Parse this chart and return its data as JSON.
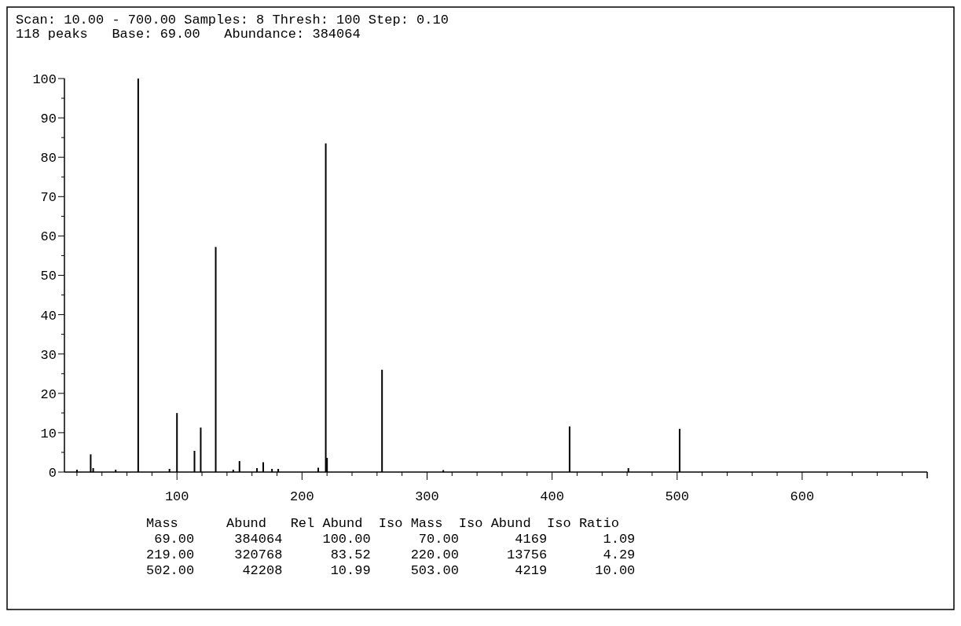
{
  "chart_data": {
    "type": "bar",
    "title": "Scan: 10.00 - 700.00 Samples: 8 Thresh: 100 Step: 0.10",
    "subtitle": "118 peaks   Base: 69.00   Abundance: 384064",
    "x": [
      20,
      31,
      33,
      51,
      69,
      94,
      100,
      114,
      119,
      131,
      145,
      150,
      164,
      169,
      176,
      181,
      213,
      219,
      220,
      264,
      313,
      414,
      461,
      502
    ],
    "values": [
      0.6,
      4.5,
      1,
      0.6,
      100,
      0.8,
      15,
      5.4,
      11.3,
      57.2,
      0.6,
      2.8,
      1,
      2.5,
      0.8,
      0.8,
      1.1,
      83.52,
      3.6,
      26,
      0.5,
      11.6,
      1,
      10.99
    ],
    "color": "#000000",
    "xlim": [
      10,
      700
    ],
    "xticks": [
      {
        "value": 20,
        "label": null
      },
      {
        "value": 40,
        "label": null
      },
      {
        "value": 60,
        "label": null
      },
      {
        "value": 80,
        "label": null
      },
      100,
      {
        "value": 120,
        "label": null
      },
      {
        "value": 140,
        "label": null
      },
      {
        "value": 160,
        "label": null
      },
      {
        "value": 180,
        "label": null
      },
      200,
      {
        "value": 220,
        "label": null
      },
      {
        "value": 240,
        "label": null
      },
      {
        "value": 260,
        "label": null
      },
      {
        "value": 280,
        "label": null
      },
      300,
      {
        "value": 320,
        "label": null
      },
      {
        "value": 340,
        "label": null
      },
      {
        "value": 360,
        "label": null
      },
      {
        "value": 380,
        "label": null
      },
      400,
      {
        "value": 420,
        "label": null
      },
      {
        "value": 440,
        "label": null
      },
      {
        "value": 460,
        "label": null
      },
      {
        "value": 480,
        "label": null
      },
      500,
      {
        "value": 520,
        "label": null
      },
      {
        "value": 540,
        "label": null
      },
      {
        "value": 560,
        "label": null
      },
      {
        "value": 580,
        "label": null
      },
      600,
      {
        "value": 620,
        "label": null
      },
      {
        "value": 640,
        "label": null
      },
      {
        "value": 660,
        "label": null
      },
      {
        "value": 680,
        "label": null
      }
    ],
    "ylim": [
      0,
      100
    ],
    "yticks": [
      0,
      {
        "value": 5,
        "label": null
      },
      10,
      {
        "value": 15,
        "label": null
      },
      20,
      {
        "value": 25,
        "label": null
      },
      30,
      {
        "value": 35,
        "label": null
      },
      40,
      {
        "value": 45,
        "label": null
      },
      50,
      {
        "value": 55,
        "label": null
      },
      60,
      {
        "value": 65,
        "label": null
      },
      70,
      {
        "value": 75,
        "label": null
      },
      80,
      {
        "value": 85,
        "label": null
      },
      90,
      {
        "value": 95,
        "label": null
      },
      100
    ],
    "grid": false,
    "annotations": [
      "Mass      Abund   Rel Abund  Iso Mass  Iso Abund  Iso Ratio",
      " 69.00     384064     100.00      70.00       4169       1.09",
      "219.00     320768      83.52     220.00      13756       4.29",
      "502.00      42208      10.99     503.00       4219      10.00"
    ]
  }
}
